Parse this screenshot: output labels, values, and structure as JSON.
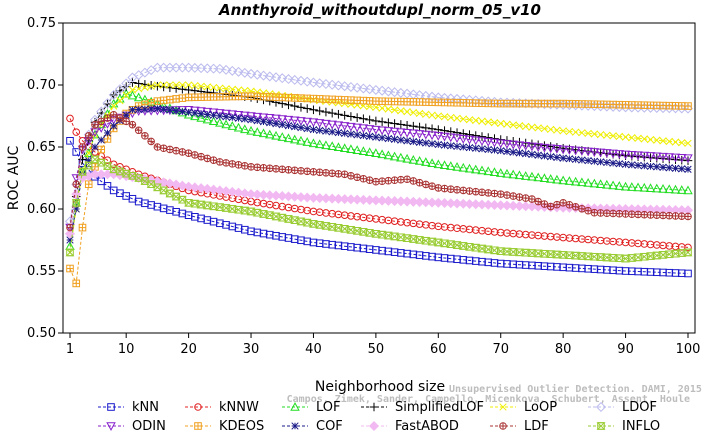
{
  "chart_data": {
    "type": "line",
    "title": "Annthyroid_withoutdupl_norm_05_v10",
    "xlabel": "Neighborhood size",
    "ylabel": "ROC AUC",
    "xlim": [
      1,
      100
    ],
    "ylim": [
      0.5,
      0.75
    ],
    "x_ticks": [
      1,
      10,
      20,
      30,
      40,
      50,
      60,
      70,
      80,
      90,
      100
    ],
    "y_ticks": [
      0.5,
      0.55,
      0.6,
      0.65,
      0.7,
      0.75
    ],
    "y_tick_labels": [
      "0.50",
      "0.55",
      "0.60",
      "0.65",
      "0.70",
      "0.75"
    ],
    "legend_position": "bottom",
    "series": [
      {
        "name": "kNN",
        "color": "#1a1acc",
        "marker": "square",
        "points": [
          [
            1,
            0.655
          ],
          [
            2,
            0.646
          ],
          [
            3,
            0.637
          ],
          [
            5,
            0.626
          ],
          [
            8,
            0.615
          ],
          [
            12,
            0.606
          ],
          [
            20,
            0.595
          ],
          [
            30,
            0.582
          ],
          [
            40,
            0.573
          ],
          [
            50,
            0.567
          ],
          [
            60,
            0.561
          ],
          [
            70,
            0.556
          ],
          [
            80,
            0.553
          ],
          [
            90,
            0.55
          ],
          [
            100,
            0.548
          ]
        ]
      },
      {
        "name": "kNNW",
        "color": "#e02020",
        "marker": "circle",
        "points": [
          [
            1,
            0.673
          ],
          [
            2,
            0.662
          ],
          [
            3,
            0.655
          ],
          [
            5,
            0.646
          ],
          [
            8,
            0.636
          ],
          [
            12,
            0.628
          ],
          [
            20,
            0.615
          ],
          [
            30,
            0.606
          ],
          [
            40,
            0.598
          ],
          [
            50,
            0.592
          ],
          [
            60,
            0.586
          ],
          [
            70,
            0.581
          ],
          [
            80,
            0.577
          ],
          [
            90,
            0.573
          ],
          [
            100,
            0.569
          ]
        ]
      },
      {
        "name": "LOF",
        "color": "#22dd22",
        "marker": "triangle",
        "points": [
          [
            1,
            0.57
          ],
          [
            2,
            0.605
          ],
          [
            3,
            0.63
          ],
          [
            5,
            0.66
          ],
          [
            8,
            0.685
          ],
          [
            10,
            0.693
          ],
          [
            12,
            0.69
          ],
          [
            20,
            0.676
          ],
          [
            30,
            0.663
          ],
          [
            40,
            0.653
          ],
          [
            50,
            0.645
          ],
          [
            60,
            0.636
          ],
          [
            70,
            0.629
          ],
          [
            80,
            0.623
          ],
          [
            90,
            0.618
          ],
          [
            100,
            0.615
          ]
        ]
      },
      {
        "name": "SimplifiedLOF",
        "color": "#000000",
        "marker": "plus",
        "points": [
          [
            1,
            0.58
          ],
          [
            2,
            0.61
          ],
          [
            3,
            0.64
          ],
          [
            5,
            0.67
          ],
          [
            8,
            0.692
          ],
          [
            11,
            0.702
          ],
          [
            15,
            0.699
          ],
          [
            20,
            0.696
          ],
          [
            30,
            0.69
          ],
          [
            40,
            0.68
          ],
          [
            50,
            0.671
          ],
          [
            60,
            0.664
          ],
          [
            70,
            0.656
          ],
          [
            80,
            0.649
          ],
          [
            90,
            0.643
          ],
          [
            100,
            0.639
          ]
        ]
      },
      {
        "name": "LoOP",
        "color": "#eeee00",
        "marker": "x",
        "points": [
          [
            1,
            0.565
          ],
          [
            2,
            0.6
          ],
          [
            3,
            0.63
          ],
          [
            5,
            0.66
          ],
          [
            8,
            0.683
          ],
          [
            11,
            0.696
          ],
          [
            15,
            0.7
          ],
          [
            20,
            0.7
          ],
          [
            30,
            0.695
          ],
          [
            40,
            0.688
          ],
          [
            50,
            0.682
          ],
          [
            60,
            0.675
          ],
          [
            70,
            0.669
          ],
          [
            80,
            0.663
          ],
          [
            90,
            0.658
          ],
          [
            100,
            0.653
          ]
        ]
      },
      {
        "name": "LDOF",
        "color": "#bbbbee",
        "marker": "diamond",
        "points": [
          [
            1,
            0.59
          ],
          [
            2,
            0.62
          ],
          [
            3,
            0.648
          ],
          [
            5,
            0.672
          ],
          [
            8,
            0.692
          ],
          [
            11,
            0.706
          ],
          [
            15,
            0.714
          ],
          [
            20,
            0.714
          ],
          [
            25,
            0.713
          ],
          [
            30,
            0.709
          ],
          [
            40,
            0.702
          ],
          [
            50,
            0.696
          ],
          [
            60,
            0.69
          ],
          [
            70,
            0.686
          ],
          [
            80,
            0.684
          ],
          [
            90,
            0.682
          ],
          [
            100,
            0.681
          ]
        ]
      },
      {
        "name": "ODIN",
        "color": "#8822cc",
        "marker": "triangle-down",
        "points": [
          [
            1,
            0.585
          ],
          [
            2,
            0.625
          ],
          [
            3,
            0.648
          ],
          [
            5,
            0.662
          ],
          [
            8,
            0.672
          ],
          [
            12,
            0.679
          ],
          [
            20,
            0.68
          ],
          [
            30,
            0.675
          ],
          [
            40,
            0.67
          ],
          [
            50,
            0.664
          ],
          [
            60,
            0.659
          ],
          [
            70,
            0.653
          ],
          [
            80,
            0.648
          ],
          [
            90,
            0.644
          ],
          [
            100,
            0.641
          ]
        ]
      },
      {
        "name": "KDEOS",
        "color": "#f0a020",
        "marker": "boxplus",
        "points": [
          [
            1,
            0.552
          ],
          [
            2,
            0.54
          ],
          [
            3,
            0.585
          ],
          [
            4,
            0.62
          ],
          [
            6,
            0.648
          ],
          [
            8,
            0.665
          ],
          [
            10,
            0.677
          ],
          [
            12,
            0.683
          ],
          [
            15,
            0.687
          ],
          [
            20,
            0.69
          ],
          [
            30,
            0.691
          ],
          [
            40,
            0.689
          ],
          [
            50,
            0.687
          ],
          [
            60,
            0.686
          ],
          [
            70,
            0.685
          ],
          [
            80,
            0.685
          ],
          [
            90,
            0.684
          ],
          [
            100,
            0.683
          ]
        ]
      },
      {
        "name": "COF",
        "color": "#1a1a88",
        "marker": "asterisk",
        "points": [
          [
            1,
            0.575
          ],
          [
            2,
            0.6
          ],
          [
            3,
            0.628
          ],
          [
            5,
            0.65
          ],
          [
            8,
            0.667
          ],
          [
            11,
            0.68
          ],
          [
            15,
            0.681
          ],
          [
            20,
            0.678
          ],
          [
            30,
            0.672
          ],
          [
            40,
            0.664
          ],
          [
            50,
            0.658
          ],
          [
            60,
            0.652
          ],
          [
            70,
            0.647
          ],
          [
            80,
            0.641
          ],
          [
            90,
            0.636
          ],
          [
            100,
            0.632
          ]
        ]
      },
      {
        "name": "FastABOD",
        "color": "#f2b8f2",
        "marker": "diamond-filled",
        "points": [
          [
            1,
            0.58
          ],
          [
            2,
            0.612
          ],
          [
            3,
            0.625
          ],
          [
            5,
            0.628
          ],
          [
            8,
            0.628
          ],
          [
            12,
            0.625
          ],
          [
            20,
            0.618
          ],
          [
            30,
            0.612
          ],
          [
            40,
            0.609
          ],
          [
            50,
            0.607
          ],
          [
            60,
            0.605
          ],
          [
            70,
            0.603
          ],
          [
            80,
            0.601
          ],
          [
            90,
            0.6
          ],
          [
            100,
            0.599
          ]
        ]
      },
      {
        "name": "LDF",
        "color": "#aa3333",
        "marker": "circleplus",
        "points": [
          [
            1,
            0.585
          ],
          [
            2,
            0.62
          ],
          [
            3,
            0.65
          ],
          [
            5,
            0.668
          ],
          [
            8,
            0.676
          ],
          [
            11,
            0.668
          ],
          [
            15,
            0.65
          ],
          [
            20,
            0.645
          ],
          [
            25,
            0.638
          ],
          [
            30,
            0.634
          ],
          [
            40,
            0.63
          ],
          [
            45,
            0.628
          ],
          [
            50,
            0.622
          ],
          [
            55,
            0.624
          ],
          [
            60,
            0.617
          ],
          [
            70,
            0.612
          ],
          [
            75,
            0.608
          ],
          [
            78,
            0.602
          ],
          [
            80,
            0.605
          ],
          [
            85,
            0.597
          ],
          [
            90,
            0.596
          ],
          [
            100,
            0.594
          ]
        ]
      },
      {
        "name": "INFLO",
        "color": "#99cc33",
        "marker": "hourglass",
        "points": [
          [
            1,
            0.565
          ],
          [
            2,
            0.605
          ],
          [
            3,
            0.63
          ],
          [
            5,
            0.64
          ],
          [
            8,
            0.632
          ],
          [
            12,
            0.625
          ],
          [
            20,
            0.605
          ],
          [
            30,
            0.598
          ],
          [
            40,
            0.588
          ],
          [
            50,
            0.58
          ],
          [
            60,
            0.573
          ],
          [
            70,
            0.566
          ],
          [
            80,
            0.563
          ],
          [
            90,
            0.56
          ],
          [
            100,
            0.565
          ]
        ]
      }
    ]
  },
  "watermark": {
    "line1": "Unsupervised Outlier Detection. DAMI, 2015.",
    "line2": "Campos, Zimek, Sander, Campello, Micenkova, Schubert, Assent, Houle"
  }
}
